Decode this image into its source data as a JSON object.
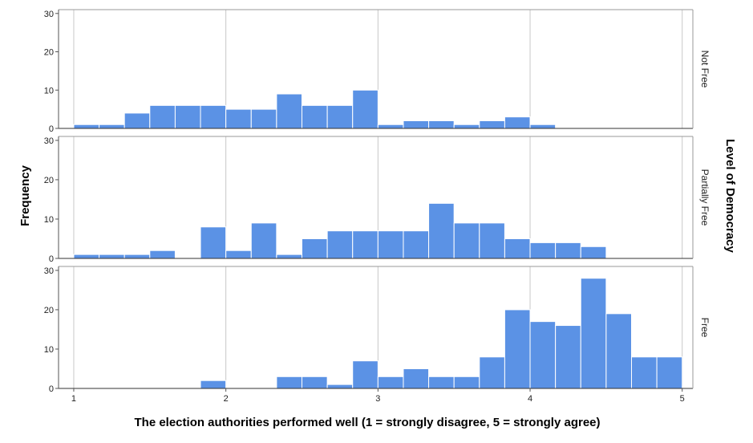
{
  "chart_data": {
    "type": "bar",
    "subtype": "histogram",
    "layout": "faceted-vertical",
    "xlabel": "The election authorities performed well (1 = strongly disagree, 5 = strongly agree)",
    "ylabel": "Frequency",
    "facet_title": "Level of Democracy",
    "xlim": [
      0.9,
      5.07
    ],
    "ylim": [
      0,
      31
    ],
    "x_ticks": [
      1,
      2,
      3,
      4,
      5
    ],
    "y_ticks": [
      0,
      10,
      20,
      30
    ],
    "grid": "vertical",
    "bin_width": 0.1667,
    "bar_color": "#5b92e5",
    "bar_edge_color": "#ffffff",
    "panels": [
      {
        "facet": "Not Free",
        "bins": [
          {
            "start": 1.0,
            "end": 1.1667,
            "count": 1
          },
          {
            "start": 1.1667,
            "end": 1.3333,
            "count": 1
          },
          {
            "start": 1.3333,
            "end": 1.5,
            "count": 4
          },
          {
            "start": 1.5,
            "end": 1.6667,
            "count": 6
          },
          {
            "start": 1.6667,
            "end": 1.8333,
            "count": 6
          },
          {
            "start": 1.8333,
            "end": 2.0,
            "count": 6
          },
          {
            "start": 2.0,
            "end": 2.1667,
            "count": 5
          },
          {
            "start": 2.1667,
            "end": 2.3333,
            "count": 5
          },
          {
            "start": 2.3333,
            "end": 2.5,
            "count": 9
          },
          {
            "start": 2.5,
            "end": 2.6667,
            "count": 6
          },
          {
            "start": 2.6667,
            "end": 2.8333,
            "count": 6
          },
          {
            "start": 2.8333,
            "end": 3.0,
            "count": 10
          },
          {
            "start": 3.0,
            "end": 3.1667,
            "count": 1
          },
          {
            "start": 3.1667,
            "end": 3.3333,
            "count": 2
          },
          {
            "start": 3.3333,
            "end": 3.5,
            "count": 2
          },
          {
            "start": 3.5,
            "end": 3.6667,
            "count": 1
          },
          {
            "start": 3.6667,
            "end": 3.8333,
            "count": 2
          },
          {
            "start": 3.8333,
            "end": 4.0,
            "count": 3
          },
          {
            "start": 4.0,
            "end": 4.1667,
            "count": 1
          }
        ]
      },
      {
        "facet": "Partially Free",
        "bins": [
          {
            "start": 1.0,
            "end": 1.1667,
            "count": 1
          },
          {
            "start": 1.1667,
            "end": 1.3333,
            "count": 1
          },
          {
            "start": 1.3333,
            "end": 1.5,
            "count": 1
          },
          {
            "start": 1.5,
            "end": 1.6667,
            "count": 2
          },
          {
            "start": 1.8333,
            "end": 2.0,
            "count": 8
          },
          {
            "start": 2.0,
            "end": 2.1667,
            "count": 2
          },
          {
            "start": 2.1667,
            "end": 2.3333,
            "count": 9
          },
          {
            "start": 2.3333,
            "end": 2.5,
            "count": 1
          },
          {
            "start": 2.5,
            "end": 2.6667,
            "count": 5
          },
          {
            "start": 2.6667,
            "end": 2.8333,
            "count": 7
          },
          {
            "start": 2.8333,
            "end": 3.0,
            "count": 7
          },
          {
            "start": 3.0,
            "end": 3.1667,
            "count": 7
          },
          {
            "start": 3.1667,
            "end": 3.3333,
            "count": 7
          },
          {
            "start": 3.3333,
            "end": 3.5,
            "count": 14
          },
          {
            "start": 3.5,
            "end": 3.6667,
            "count": 9
          },
          {
            "start": 3.6667,
            "end": 3.8333,
            "count": 9
          },
          {
            "start": 3.8333,
            "end": 4.0,
            "count": 5
          },
          {
            "start": 4.0,
            "end": 4.1667,
            "count": 4
          },
          {
            "start": 4.1667,
            "end": 4.3333,
            "count": 4
          },
          {
            "start": 4.3333,
            "end": 4.5,
            "count": 3
          }
        ]
      },
      {
        "facet": "Free",
        "bins": [
          {
            "start": 1.8333,
            "end": 2.0,
            "count": 2
          },
          {
            "start": 2.3333,
            "end": 2.5,
            "count": 3
          },
          {
            "start": 2.5,
            "end": 2.6667,
            "count": 3
          },
          {
            "start": 2.6667,
            "end": 2.8333,
            "count": 1
          },
          {
            "start": 2.8333,
            "end": 3.0,
            "count": 7
          },
          {
            "start": 3.0,
            "end": 3.1667,
            "count": 3
          },
          {
            "start": 3.1667,
            "end": 3.3333,
            "count": 5
          },
          {
            "start": 3.3333,
            "end": 3.5,
            "count": 3
          },
          {
            "start": 3.5,
            "end": 3.6667,
            "count": 3
          },
          {
            "start": 3.6667,
            "end": 3.8333,
            "count": 8
          },
          {
            "start": 3.8333,
            "end": 4.0,
            "count": 20
          },
          {
            "start": 4.0,
            "end": 4.1667,
            "count": 17
          },
          {
            "start": 4.1667,
            "end": 4.3333,
            "count": 16
          },
          {
            "start": 4.3333,
            "end": 4.5,
            "count": 28
          },
          {
            "start": 4.5,
            "end": 4.6667,
            "count": 19
          },
          {
            "start": 4.6667,
            "end": 4.8333,
            "count": 8
          },
          {
            "start": 4.8333,
            "end": 5.0,
            "count": 8
          }
        ]
      }
    ]
  }
}
